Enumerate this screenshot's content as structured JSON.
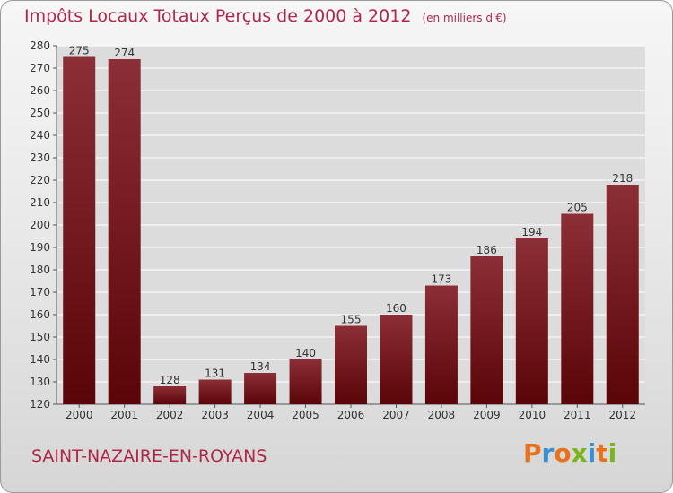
{
  "chart_data": {
    "type": "bar",
    "title": "Impôts Locaux Totaux Perçus de 2000 à 2012",
    "unit_label": "(en milliers d'€)",
    "categories": [
      "2000",
      "2001",
      "2002",
      "2003",
      "2004",
      "2005",
      "2006",
      "2007",
      "2008",
      "2009",
      "2010",
      "2011",
      "2012"
    ],
    "values": [
      275,
      274,
      128,
      131,
      134,
      140,
      155,
      160,
      173,
      186,
      194,
      205,
      218
    ],
    "ylim": [
      120,
      280
    ],
    "ytick_step": 10,
    "xlabel": "",
    "ylabel": "",
    "grid": true,
    "bar_color": "#7a1c24"
  },
  "footer": {
    "place_name": "SAINT-NAZAIRE-EN-ROYANS",
    "logo_text": "Proxiti",
    "logo_colors": [
      "#e8721c",
      "#3a8fd0",
      "#e8721c",
      "#7ab51d",
      "#3a8fd0",
      "#e8721c",
      "#7ab51d"
    ]
  }
}
